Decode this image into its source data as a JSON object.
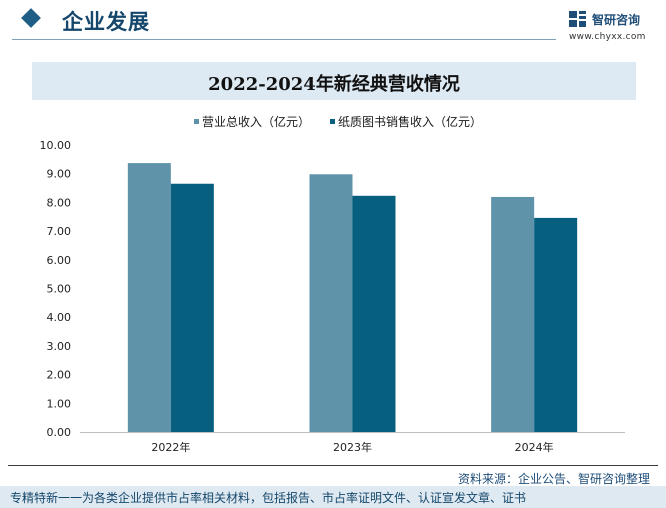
{
  "header": {
    "section_title": "企业发展",
    "logo_name": "智研咨询",
    "logo_url": "www.chyxx.com"
  },
  "colors": {
    "series_1": "#5f93a9",
    "series_2": "#065f7f",
    "accent": "#1f5e87"
  },
  "chart_data": {
    "type": "bar",
    "title": "2022-2024年新经典营收情况",
    "categories": [
      "2022年",
      "2023年",
      "2024年"
    ],
    "series": [
      {
        "name": "营业总收入（亿元）",
        "values": [
          9.37,
          8.98,
          8.19
        ]
      },
      {
        "name": "纸质图书销售收入（亿元）",
        "values": [
          8.65,
          8.23,
          7.46
        ]
      }
    ],
    "yticks": [
      "0.00",
      "1.00",
      "2.00",
      "3.00",
      "4.00",
      "5.00",
      "6.00",
      "7.00",
      "8.00",
      "9.00",
      "10.00"
    ],
    "ylim": [
      0,
      10
    ],
    "xlabel": "",
    "ylabel": "",
    "grid": false,
    "legend_position": "top-center"
  },
  "footer": {
    "source": "资料来源：企业公告、智研咨询整理",
    "tagline": "专精特新一一为各类企业提供市占率相关材料，包括报告、市占率证明文件、认证宣发文章、证书"
  }
}
